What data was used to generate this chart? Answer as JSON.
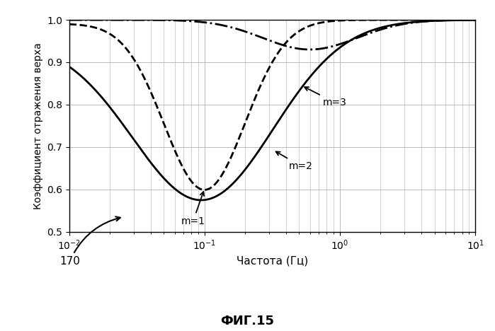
{
  "xlabel": "Частота (Гц)",
  "ylabel": "Коэффициент отражения верха",
  "fig_title": "ФИГ.15",
  "label_170": "170",
  "ymin": 0.5,
  "ymax": 1.0,
  "yticks": [
    0.5,
    0.6,
    0.7,
    0.8,
    0.9,
    1.0
  ],
  "annotation_m1": "m=1",
  "annotation_m2": "m=2",
  "annotation_m3": "m=3",
  "line_color": "#000000",
  "background_color": "#ffffff",
  "grid_color": "#b0b0b0"
}
